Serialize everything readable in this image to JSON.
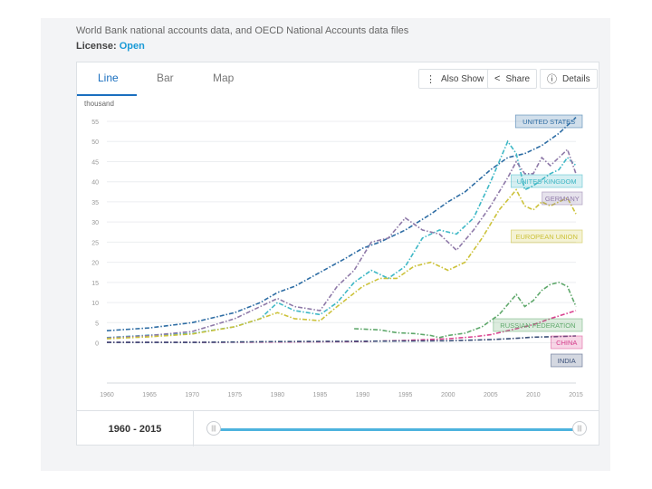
{
  "header": {
    "source": "World Bank national accounts data, and OECD National Accounts data files",
    "license_label": "License:",
    "license_value": "Open"
  },
  "tabs": [
    {
      "label": "Line",
      "active": true
    },
    {
      "label": "Bar",
      "active": false
    },
    {
      "label": "Map",
      "active": false
    }
  ],
  "toolbar": {
    "also_show_label": "Also Show",
    "share_label": "Share",
    "details_label": "Details"
  },
  "range": {
    "label": "1960 - 2015",
    "start": 1960,
    "end": 2015
  },
  "chart_data": {
    "type": "line",
    "ylabel": "thousand",
    "ylim": [
      -10,
      55
    ],
    "yticks": [
      55,
      50,
      45,
      40,
      35,
      30,
      25,
      20,
      15,
      10,
      5,
      0
    ],
    "ytick_labels": [
      "55",
      "50",
      "45",
      "40",
      "35",
      "30",
      "25",
      "20",
      "15",
      "10",
      "5",
      "0"
    ],
    "xlim": [
      1960,
      2015
    ],
    "xticks": [
      1960,
      1965,
      1970,
      1975,
      1980,
      1985,
      1990,
      1995,
      2000,
      2005,
      2010,
      2015
    ],
    "grid": true,
    "series": [
      {
        "name": "UNITED STATES",
        "color": "#2e6da4",
        "x": [
          1960,
          1965,
          1970,
          1975,
          1978,
          1980,
          1982,
          1985,
          1988,
          1990,
          1992,
          1995,
          1998,
          2000,
          2002,
          2005,
          2007,
          2009,
          2011,
          2013,
          2015
        ],
        "y": [
          3,
          3.7,
          5,
          7.5,
          10,
          12.5,
          14,
          17.5,
          21,
          23.5,
          25,
          28,
          32,
          35,
          37.5,
          43,
          46,
          47,
          49,
          52,
          56
        ]
      },
      {
        "name": "UNITED KINGDOM",
        "color": "#3fb8c6",
        "x": [
          1960,
          1965,
          1970,
          1975,
          1978,
          1980,
          1982,
          1985,
          1987,
          1989,
          1991,
          1993,
          1995,
          1997,
          1999,
          2001,
          2003,
          2005,
          2007,
          2008,
          2009,
          2010,
          2012,
          2013,
          2014,
          2015
        ],
        "y": [
          1.3,
          1.9,
          2.3,
          4,
          6,
          10,
          8,
          7,
          10,
          15,
          18,
          16,
          19,
          26,
          28,
          27,
          31,
          40,
          50,
          47,
          38,
          39,
          42,
          43,
          46,
          44
        ]
      },
      {
        "name": "GERMANY",
        "color": "#8e79a8",
        "x": [
          1960,
          1965,
          1970,
          1975,
          1978,
          1980,
          1982,
          1985,
          1987,
          1989,
          1991,
          1993,
          1995,
          1997,
          1999,
          2001,
          2003,
          2005,
          2007,
          2008,
          2009,
          2010,
          2011,
          2012,
          2013,
          2014,
          2015
        ],
        "y": [
          1.2,
          1.8,
          2.8,
          6,
          9,
          11,
          9,
          8,
          14,
          18,
          25,
          26,
          31,
          28,
          27,
          23,
          28,
          34,
          41,
          45,
          42,
          42,
          46,
          44,
          46,
          48,
          42
        ]
      },
      {
        "name": "EUROPEAN UNION",
        "color": "#ccc23a",
        "x": [
          1960,
          1965,
          1970,
          1975,
          1978,
          1980,
          1982,
          1985,
          1987,
          1990,
          1992,
          1994,
          1996,
          1998,
          2000,
          2002,
          2004,
          2006,
          2008,
          2009,
          2010,
          2011,
          2012,
          2013,
          2014,
          2015
        ],
        "y": [
          1,
          1.5,
          2.2,
          4,
          6,
          7.5,
          6,
          5.5,
          9,
          14,
          16,
          16,
          19,
          20,
          18,
          20,
          26,
          33,
          38,
          34,
          33,
          35,
          34,
          35,
          36,
          32
        ]
      },
      {
        "name": "RUSSIAN FEDERATION",
        "color": "#5fa86b",
        "x": [
          1989,
          1992,
          1994,
          1996,
          1998,
          1999,
          2000,
          2002,
          2004,
          2006,
          2008,
          2009,
          2010,
          2011,
          2012,
          2013,
          2014,
          2015
        ],
        "y": [
          3.5,
          3.2,
          2.5,
          2.3,
          1.8,
          1.3,
          1.8,
          2.4,
          4,
          7,
          12,
          9,
          10.5,
          13,
          14.5,
          15,
          14,
          9
        ]
      },
      {
        "name": "CHINA",
        "color": "#d9428f",
        "x": [
          1960,
          1970,
          1980,
          1990,
          1995,
          2000,
          2003,
          2005,
          2008,
          2010,
          2012,
          2015
        ],
        "y": [
          0.1,
          0.1,
          0.2,
          0.3,
          0.6,
          1,
          1.5,
          2,
          3.5,
          4.5,
          6,
          8
        ]
      },
      {
        "name": "INDIA",
        "color": "#3a4f78",
        "x": [
          1960,
          1970,
          1980,
          1990,
          2000,
          2005,
          2008,
          2010,
          2012,
          2015
        ],
        "y": [
          0.1,
          0.1,
          0.3,
          0.4,
          0.5,
          0.8,
          1.1,
          1.4,
          1.5,
          1.7
        ]
      }
    ]
  }
}
